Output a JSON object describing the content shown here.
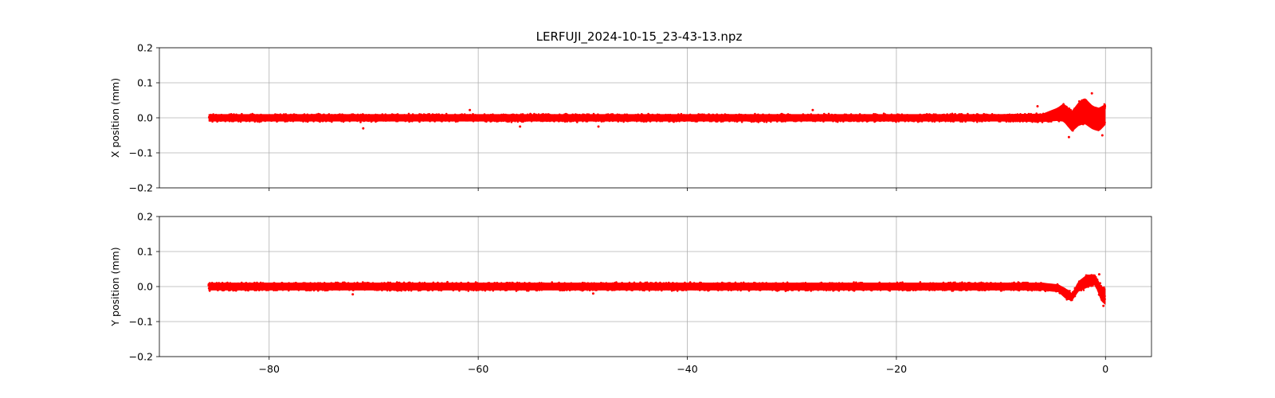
{
  "figure": {
    "title": "LERFUJI_2024-10-15_23-43-13.npz"
  },
  "colors": {
    "series": "#ff0000",
    "grid": "#b0b0b0",
    "axes": "#000000",
    "background": "#ffffff"
  },
  "chart_data": [
    {
      "type": "scatter",
      "title": "LERFUJI_2024-10-15_23-43-13.npz",
      "xlabel": "",
      "ylabel": "X position (mm)",
      "xlim": [
        -90.5,
        4.4
      ],
      "ylim": [
        -0.2,
        0.2
      ],
      "x_ticks": [
        -80,
        -60,
        -40,
        -20,
        0
      ],
      "x_tick_labels": [
        "−80",
        "−60",
        "−40",
        "−20",
        "0"
      ],
      "x_tick_labels_shown": false,
      "y_ticks": [
        -0.2,
        -0.1,
        0.0,
        0.1,
        0.2
      ],
      "y_tick_labels": [
        "−0.2",
        "−0.1",
        "0.0",
        "0.1",
        "0.2"
      ],
      "grid": true,
      "marker": "point",
      "color": "#ff0000",
      "x_range": [
        -85.8,
        0
      ],
      "band": [
        {
          "x": -85.8,
          "center": 0.0,
          "half_width": 0.014
        },
        {
          "x": -10.0,
          "center": 0.0,
          "half_width": 0.014
        },
        {
          "x": -6.0,
          "center": 0.0,
          "half_width": 0.016
        },
        {
          "x": -4.6,
          "center": 0.01,
          "half_width": 0.025
        },
        {
          "x": -4.0,
          "center": 0.015,
          "half_width": 0.035
        },
        {
          "x": -3.2,
          "center": -0.01,
          "half_width": 0.04
        },
        {
          "x": -2.6,
          "center": 0.01,
          "half_width": 0.045
        },
        {
          "x": -2.0,
          "center": 0.02,
          "half_width": 0.05
        },
        {
          "x": -1.2,
          "center": 0.0,
          "half_width": 0.045
        },
        {
          "x": -0.6,
          "center": -0.005,
          "half_width": 0.045
        },
        {
          "x": 0.0,
          "center": 0.01,
          "half_width": 0.04
        }
      ],
      "outliers": [
        {
          "x": -71.0,
          "y": -0.03
        },
        {
          "x": -60.8,
          "y": 0.022
        },
        {
          "x": -56.0,
          "y": -0.025
        },
        {
          "x": -48.5,
          "y": -0.025
        },
        {
          "x": -28.0,
          "y": 0.022
        },
        {
          "x": -6.5,
          "y": 0.033
        },
        {
          "x": -3.5,
          "y": -0.055
        },
        {
          "x": -1.3,
          "y": 0.07
        },
        {
          "x": -0.3,
          "y": -0.05
        }
      ]
    },
    {
      "type": "scatter",
      "title": "",
      "xlabel": "",
      "ylabel": "Y position (mm)",
      "xlim": [
        -90.5,
        4.4
      ],
      "ylim": [
        -0.2,
        0.2
      ],
      "x_ticks": [
        -80,
        -60,
        -40,
        -20,
        0
      ],
      "x_tick_labels": [
        "−80",
        "−60",
        "−40",
        "−20",
        "0"
      ],
      "x_tick_labels_shown": true,
      "y_ticks": [
        -0.2,
        -0.1,
        0.0,
        0.1,
        0.2
      ],
      "y_tick_labels": [
        "−0.2",
        "−0.1",
        "0.0",
        "0.1",
        "0.2"
      ],
      "grid": true,
      "marker": "point",
      "color": "#ff0000",
      "x_range": [
        -85.8,
        0
      ],
      "band": [
        {
          "x": -85.8,
          "center": 0.0,
          "half_width": 0.015
        },
        {
          "x": -6.0,
          "center": 0.0,
          "half_width": 0.015
        },
        {
          "x": -4.5,
          "center": -0.005,
          "half_width": 0.015
        },
        {
          "x": -3.8,
          "center": -0.02,
          "half_width": 0.02
        },
        {
          "x": -3.2,
          "center": -0.03,
          "half_width": 0.015
        },
        {
          "x": -2.6,
          "center": 0.0,
          "half_width": 0.02
        },
        {
          "x": -1.8,
          "center": 0.015,
          "half_width": 0.025
        },
        {
          "x": -1.0,
          "center": 0.02,
          "half_width": 0.02
        },
        {
          "x": -0.4,
          "center": -0.02,
          "half_width": 0.03
        },
        {
          "x": 0.0,
          "center": -0.03,
          "half_width": 0.03
        }
      ],
      "outliers": [
        {
          "x": -72.0,
          "y": -0.022
        },
        {
          "x": -49.0,
          "y": -0.02
        },
        {
          "x": -0.6,
          "y": 0.035
        },
        {
          "x": -0.2,
          "y": -0.055
        }
      ]
    }
  ]
}
